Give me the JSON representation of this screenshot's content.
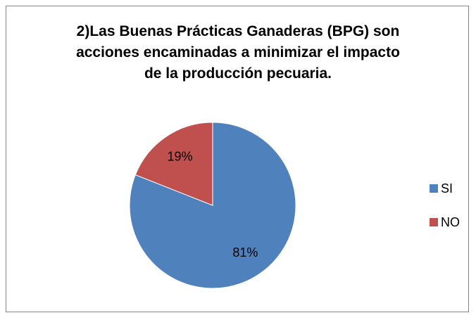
{
  "chart_data": {
    "type": "pie",
    "title": "2)Las Buenas Prácticas Ganaderas (BPG) son acciones encaminadas a minimizar el impacto de la producción pecuaria.",
    "categories": [
      "SI",
      "NO"
    ],
    "values": [
      81,
      19
    ],
    "value_labels": [
      "81%",
      "19%"
    ],
    "colors": [
      "#4f81bd",
      "#c0504d"
    ],
    "legend": "right"
  }
}
